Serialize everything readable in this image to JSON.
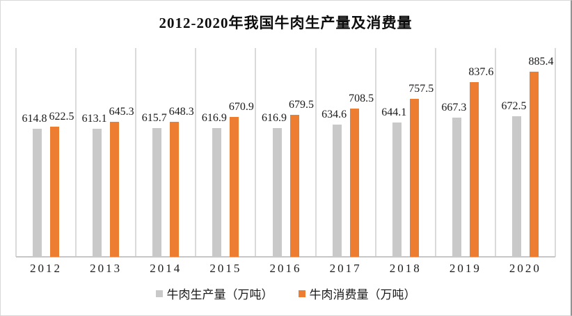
{
  "chart_data": {
    "type": "bar",
    "title": "2012-2020年我国牛肉生产量及消费量",
    "categories": [
      "2012",
      "2013",
      "2014",
      "2015",
      "2016",
      "2017",
      "2018",
      "2019",
      "2020"
    ],
    "series": [
      {
        "name": "牛肉生产量（万吨）",
        "key": "production",
        "color": "#c9c9c9",
        "values": [
          614.8,
          613.1,
          615.7,
          616.9,
          616.9,
          634.6,
          644.1,
          667.3,
          672.5
        ]
      },
      {
        "name": "牛肉消费量（万吨）",
        "key": "consumption",
        "color": "#ed7d31",
        "values": [
          622.5,
          645.3,
          648.3,
          670.9,
          679.5,
          708.5,
          757.5,
          837.6,
          885.4
        ]
      }
    ],
    "xlabel": "",
    "ylabel": "",
    "ylim": [
      0,
      1000
    ],
    "grid": "vertical category separators only",
    "grid_color": "#dadada",
    "axis_color": "#c6c6c6",
    "legend_position": "bottom",
    "data_labels": true,
    "label_color": "#1a1a1a"
  }
}
